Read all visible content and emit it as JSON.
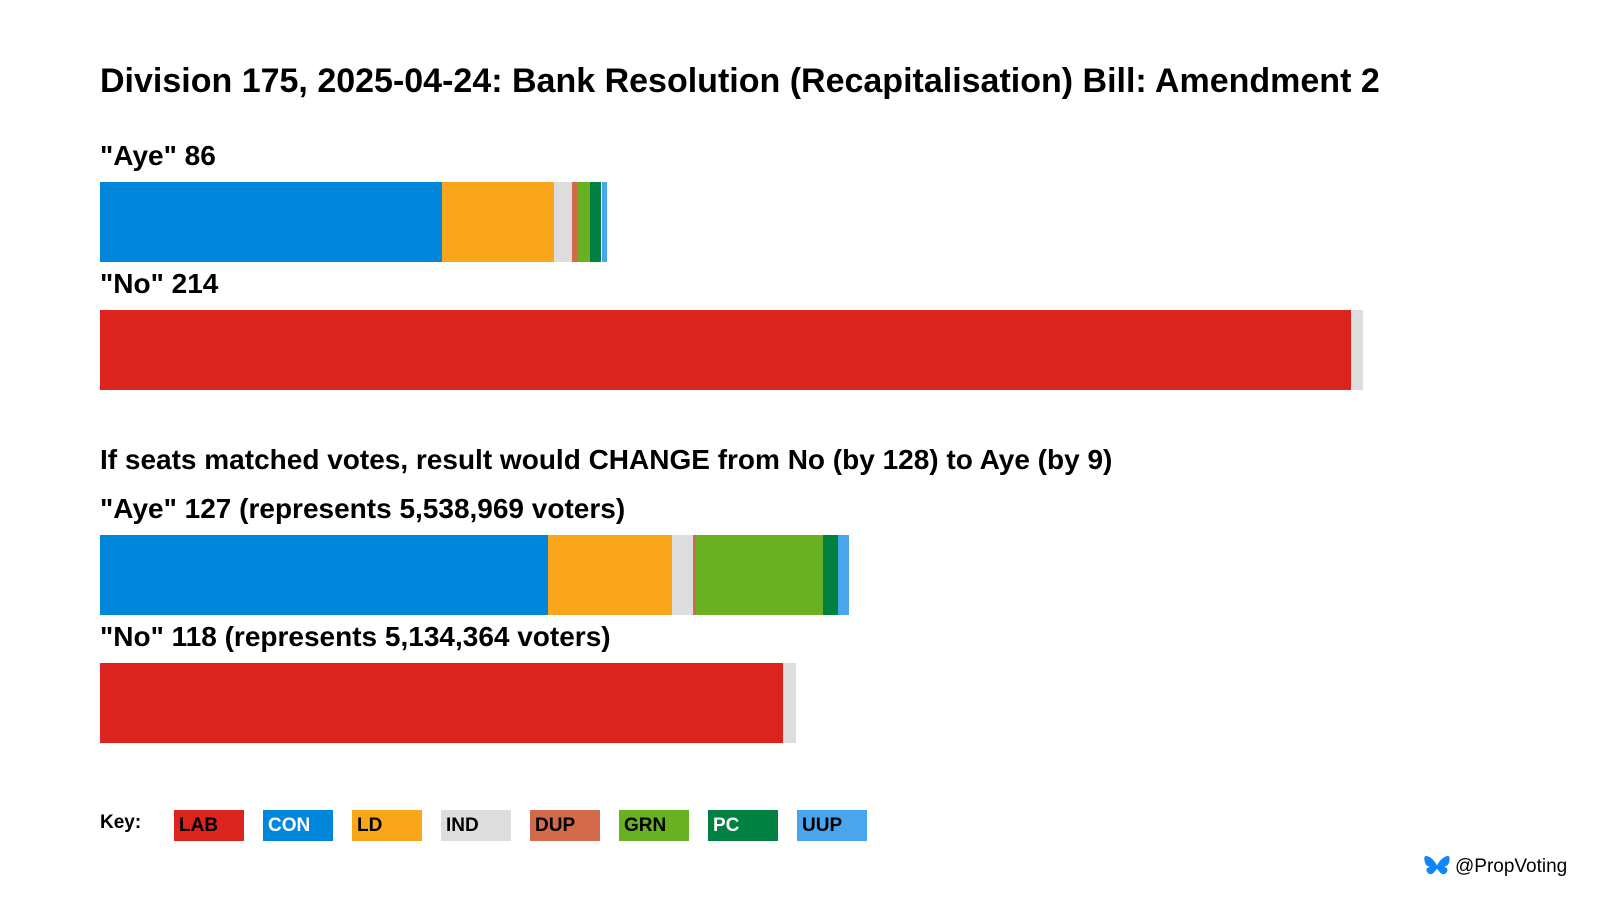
{
  "title": "Division 175, 2025-04-24: Bank Resolution (Recapitalisation) Bill: Amendment 2",
  "subheading": "If seats matched votes, result would CHANGE from No (by 128) to Aye (by 9)",
  "key_label": "Key:",
  "credit": "@PropVoting",
  "parties": [
    {
      "name": "LAB",
      "color": "#dc241f",
      "text_color": "#000000"
    },
    {
      "name": "CON",
      "color": "#0087dc",
      "text_color": "#ffffff"
    },
    {
      "name": "LD",
      "color": "#faa61a",
      "text_color": "#000000"
    },
    {
      "name": "IND",
      "color": "#dddddd",
      "text_color": "#000000"
    },
    {
      "name": "DUP",
      "color": "#d46a4c",
      "text_color": "#000000"
    },
    {
      "name": "GRN",
      "color": "#6ab023",
      "text_color": "#000000"
    },
    {
      "name": "PC",
      "color": "#008142",
      "text_color": "#ffffff"
    },
    {
      "name": "UUP",
      "color": "#48a5ee",
      "text_color": "#000000"
    }
  ],
  "chart_data": {
    "type": "bar",
    "orientation": "horizontal",
    "stacked": true,
    "xlim": [
      0,
      220
    ],
    "bars": [
      {
        "label": "\"Aye\" 86",
        "total": 86,
        "segments": [
          {
            "party": "CON",
            "value": 58
          },
          {
            "party": "LD",
            "value": 19
          },
          {
            "party": "IND",
            "value": 3
          },
          {
            "party": "DUP",
            "value": 1
          },
          {
            "party": "GRN",
            "value": 2
          },
          {
            "party": "PC",
            "value": 2
          },
          {
            "party": "UUP",
            "value": 1
          }
        ]
      },
      {
        "label": "\"No\" 214",
        "total": 214,
        "segments": [
          {
            "party": "LAB",
            "value": 212
          },
          {
            "party": "IND",
            "value": 2
          }
        ]
      },
      {
        "label": "\"Aye\" 127 (represents 5,538,969 voters)",
        "total": 127,
        "segments": [
          {
            "party": "CON",
            "value": 76
          },
          {
            "party": "LD",
            "value": 21
          },
          {
            "party": "IND",
            "value": 3.5
          },
          {
            "party": "DUP",
            "value": 0.5
          },
          {
            "party": "GRN",
            "value": 21.5
          },
          {
            "party": "PC",
            "value": 2.5
          },
          {
            "party": "UUP",
            "value": 2
          }
        ]
      },
      {
        "label": "\"No\" 118 (represents 5,134,364 voters)",
        "total": 118,
        "segments": [
          {
            "party": "LAB",
            "value": 115.7
          },
          {
            "party": "IND",
            "value": 2.3
          }
        ]
      }
    ]
  }
}
